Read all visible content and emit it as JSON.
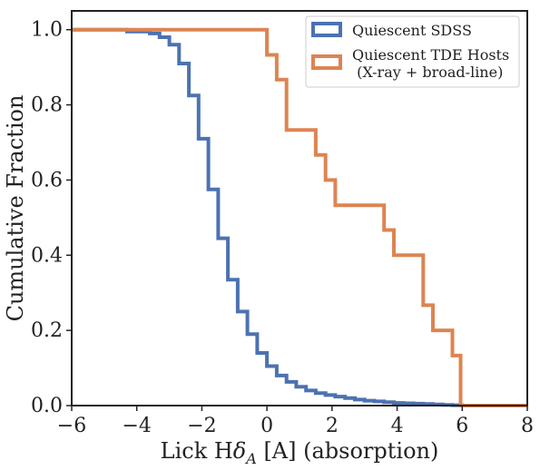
{
  "chart_data": {
    "type": "line",
    "subtype": "cumulative step histogram",
    "xlabel_parts": [
      "Lick H",
      "δ",
      "A",
      " [A] (absorption)"
    ],
    "ylabel": "Cumulative Fraction",
    "xlim": [
      -6,
      8
    ],
    "ylim": [
      0,
      1.05
    ],
    "xticks": [
      -6,
      -4,
      -2,
      0,
      2,
      4,
      6,
      8
    ],
    "xtick_labels": [
      "−6",
      "−4",
      "−2",
      "0",
      "2",
      "4",
      "6",
      "8"
    ],
    "yticks": [
      0,
      0.2,
      0.4,
      0.6,
      0.8,
      1.0
    ],
    "ytick_labels": [
      "0.0",
      "0.2",
      "0.4",
      "0.6",
      "0.8",
      "1.0"
    ],
    "grid": false,
    "legend_position": "top-right",
    "series": [
      {
        "name": "Quiescent SDSS",
        "color": "#4c72b0",
        "x": [
          -6.0,
          -4.3,
          -3.6,
          -3.3,
          -3.0,
          -2.7,
          -2.4,
          -2.1,
          -1.8,
          -1.5,
          -1.2,
          -0.9,
          -0.6,
          -0.3,
          0.0,
          0.3,
          0.6,
          0.9,
          1.2,
          1.5,
          1.8,
          2.1,
          2.4,
          2.7,
          3.0,
          3.3,
          3.6,
          3.9,
          4.2,
          4.5,
          4.8,
          5.1,
          5.4,
          5.7,
          6.0,
          8.0
        ],
        "y": [
          1.0,
          0.995,
          0.99,
          0.98,
          0.96,
          0.91,
          0.825,
          0.71,
          0.575,
          0.445,
          0.335,
          0.25,
          0.19,
          0.14,
          0.105,
          0.08,
          0.063,
          0.05,
          0.04,
          0.033,
          0.028,
          0.024,
          0.02,
          0.016,
          0.013,
          0.011,
          0.009,
          0.007,
          0.006,
          0.005,
          0.004,
          0.003,
          0.002,
          0.001,
          0.0,
          0.0
        ]
      },
      {
        "name": "Quiescent TDE Hosts\n (X-ray + broad-line)",
        "color": "#dd8452",
        "x": [
          -6.0,
          0.0,
          0.3,
          0.6,
          1.5,
          1.8,
          2.1,
          3.6,
          3.9,
          4.8,
          5.1,
          5.7,
          5.95,
          8.0
        ],
        "y": [
          1.0,
          0.933,
          0.867,
          0.733,
          0.667,
          0.6,
          0.533,
          0.467,
          0.4,
          0.267,
          0.2,
          0.133,
          0.0,
          0.0
        ]
      }
    ]
  }
}
